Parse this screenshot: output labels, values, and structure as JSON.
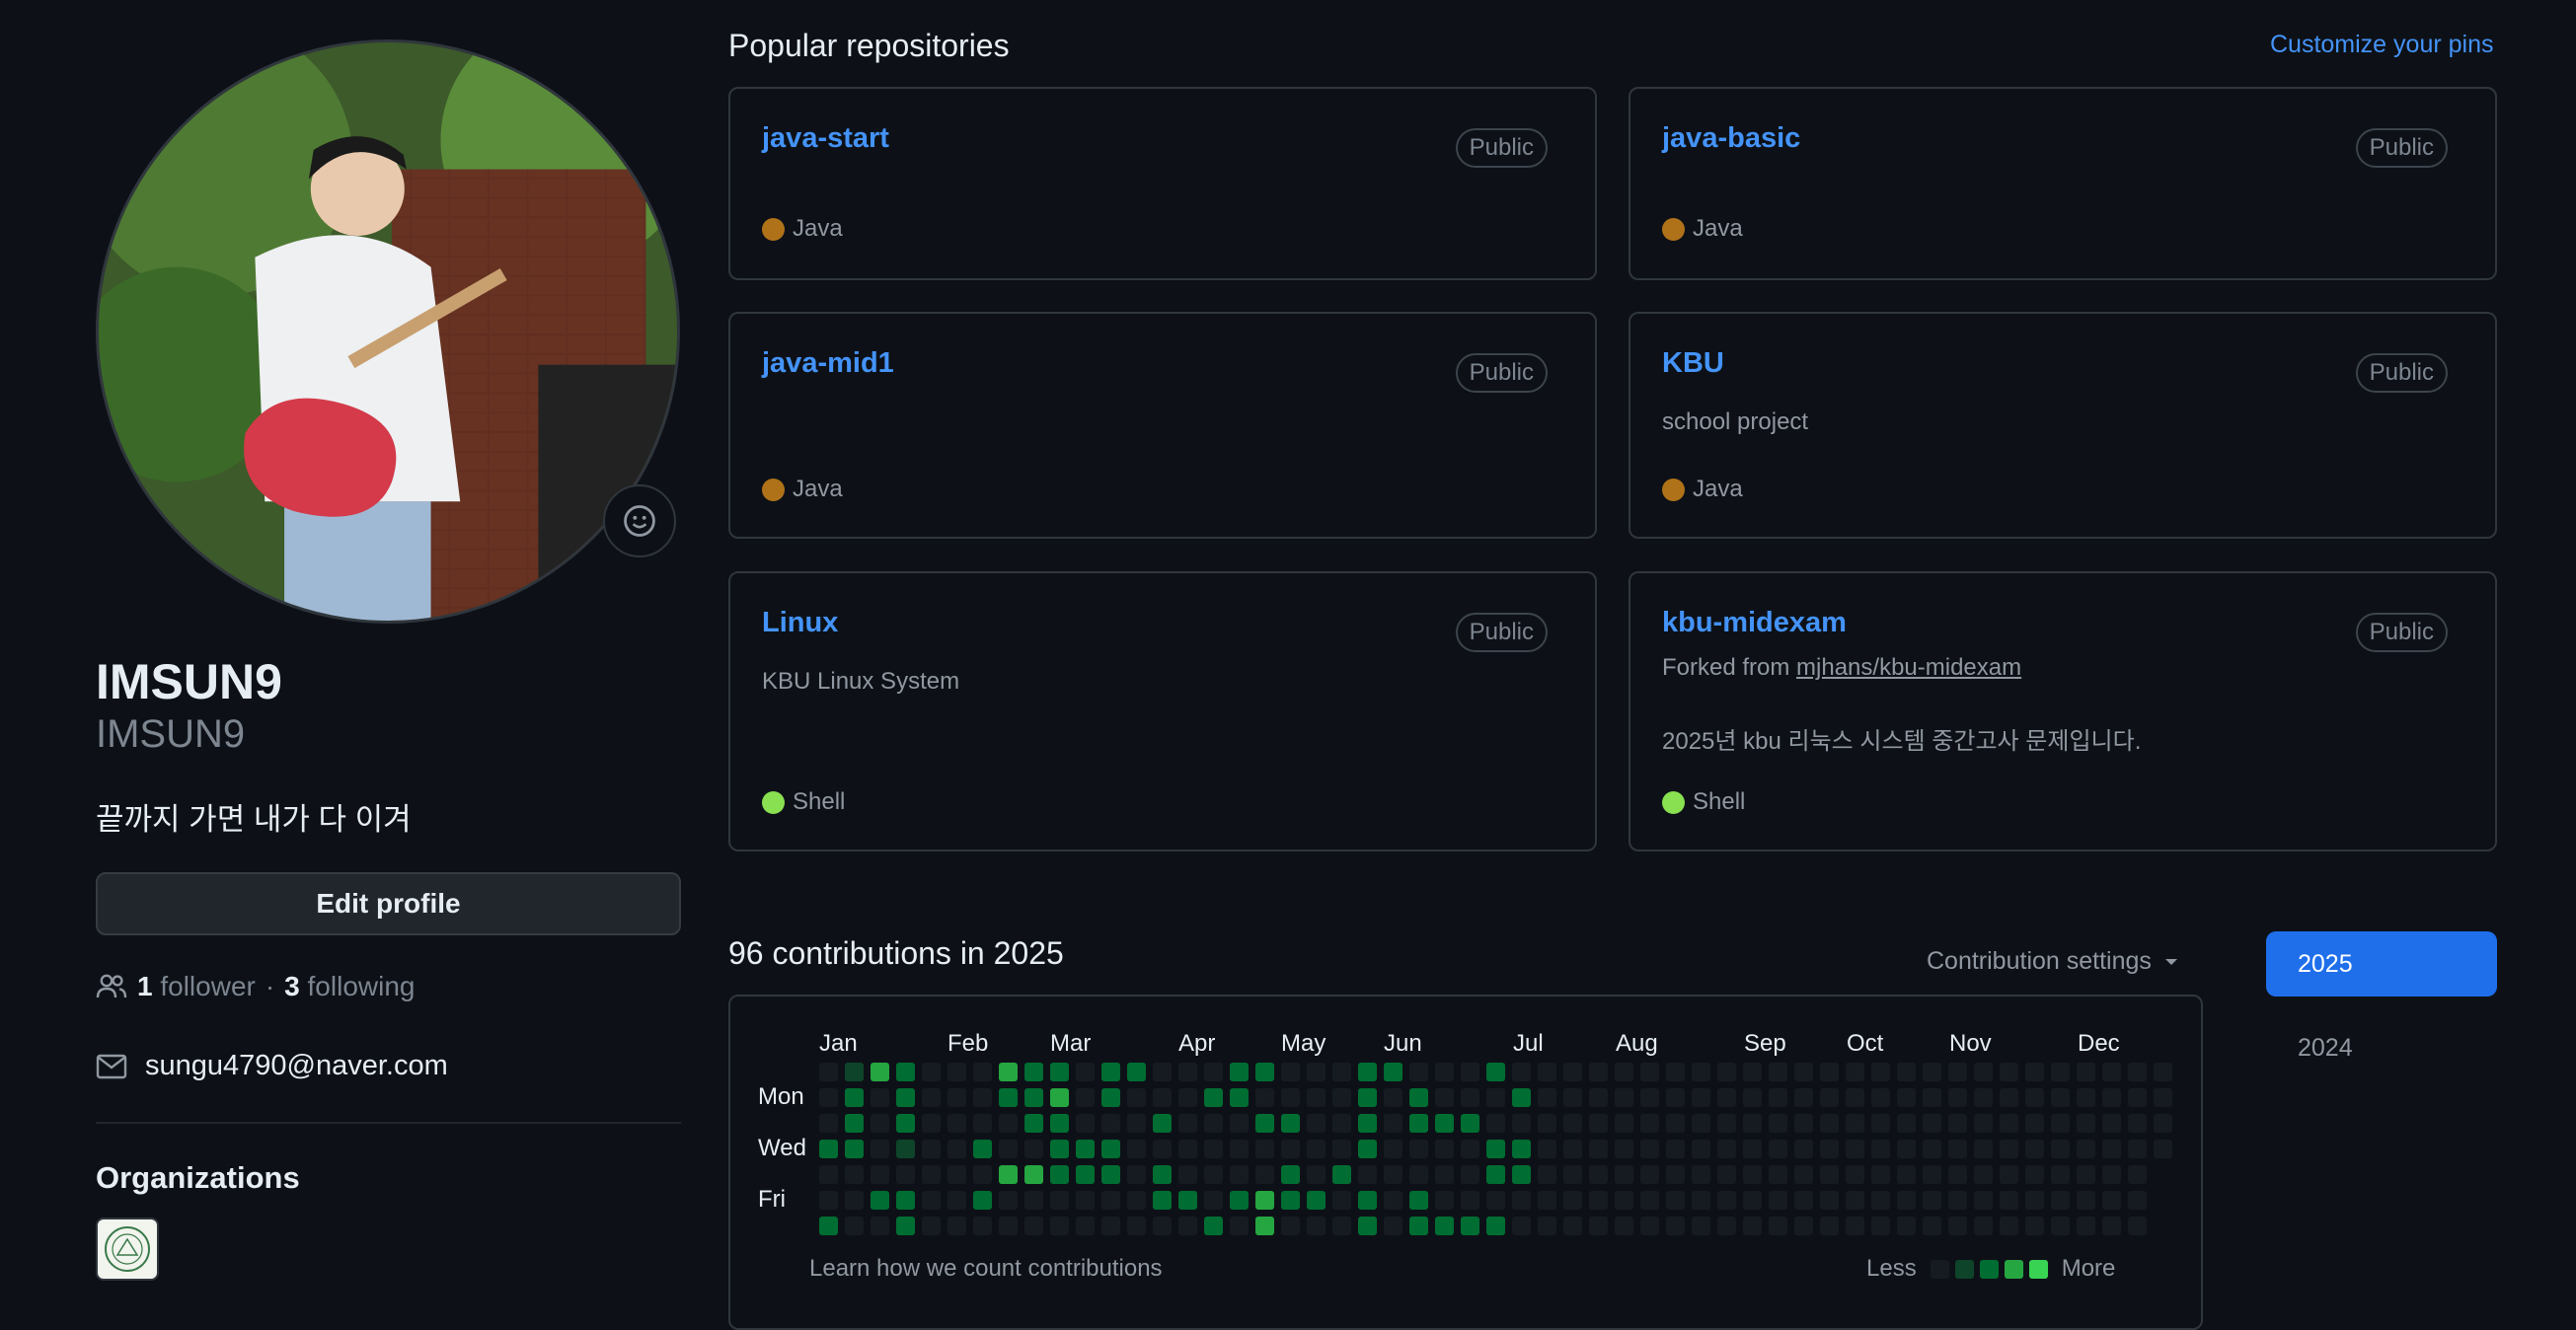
{
  "profile": {
    "name": "IMSUN9",
    "login": "IMSUN9",
    "bio": "끝까지 가면 내가 다 이겨",
    "edit_label": "Edit profile",
    "followers_count": "1",
    "followers_label": "follower",
    "separator": "·",
    "following_count": "3",
    "following_label": "following",
    "email": "sungu4790@naver.com",
    "orgs_heading": "Organizations"
  },
  "pinned": {
    "heading": "Popular repositories",
    "customize": "Customize your pins",
    "repos": [
      {
        "name": "java-start",
        "visibility": "Public",
        "language": "Java",
        "lang_color": "#b07219"
      },
      {
        "name": "java-basic",
        "visibility": "Public",
        "language": "Java",
        "lang_color": "#b07219"
      },
      {
        "name": "java-mid1",
        "visibility": "Public",
        "language": "Java",
        "lang_color": "#b07219"
      },
      {
        "name": "KBU",
        "visibility": "Public",
        "description": "school project",
        "language": "Java",
        "lang_color": "#b07219"
      },
      {
        "name": "Linux",
        "visibility": "Public",
        "description": "KBU Linux System",
        "language": "Shell",
        "lang_color": "#89e051"
      },
      {
        "name": "kbu-midexam",
        "visibility": "Public",
        "fork_prefix": "Forked from ",
        "fork_source": "mjhans/kbu-midexam",
        "description": "2025년 kbu 리눅스 시스템 중간고사 문제입니다.",
        "language": "Shell",
        "lang_color": "#89e051"
      }
    ]
  },
  "contributions": {
    "heading": "96 contributions in 2025",
    "settings_label": "Contribution settings",
    "months": [
      "Jan",
      "Feb",
      "Mar",
      "Apr",
      "May",
      "Jun",
      "Jul",
      "Aug",
      "Sep",
      "Oct",
      "Nov",
      "Dec"
    ],
    "day_labels": [
      "Mon",
      "Wed",
      "Fri"
    ],
    "learn_link": "Learn how we count contributions",
    "legend_less": "Less",
    "legend_more": "More",
    "level_colors": [
      "#161b22",
      "#0e4429",
      "#006d32",
      "#26a641",
      "#39d353"
    ],
    "weeks": [
      [
        0,
        0,
        0,
        2,
        0,
        0,
        2
      ],
      [
        1,
        2,
        2,
        2,
        0,
        0,
        0
      ],
      [
        3,
        0,
        0,
        0,
        0,
        2,
        0
      ],
      [
        2,
        2,
        2,
        1,
        0,
        2,
        2
      ],
      [
        0,
        0,
        0,
        0,
        0,
        0,
        0
      ],
      [
        0,
        0,
        0,
        0,
        0,
        0,
        0
      ],
      [
        0,
        0,
        0,
        2,
        0,
        2,
        0
      ],
      [
        3,
        2,
        0,
        0,
        3,
        0,
        0
      ],
      [
        2,
        2,
        2,
        0,
        3,
        0,
        0
      ],
      [
        2,
        3,
        2,
        2,
        2,
        0,
        0
      ],
      [
        0,
        0,
        0,
        2,
        2,
        0,
        0
      ],
      [
        2,
        2,
        0,
        2,
        2,
        0,
        0
      ],
      [
        2,
        0,
        0,
        0,
        0,
        0,
        0
      ],
      [
        0,
        0,
        2,
        0,
        2,
        2,
        0
      ],
      [
        0,
        0,
        0,
        0,
        0,
        2,
        0
      ],
      [
        0,
        2,
        0,
        0,
        0,
        0,
        2
      ],
      [
        2,
        2,
        0,
        0,
        0,
        2,
        0
      ],
      [
        2,
        0,
        2,
        0,
        0,
        3,
        3
      ],
      [
        0,
        0,
        2,
        0,
        2,
        2,
        0
      ],
      [
        0,
        0,
        0,
        0,
        0,
        2,
        0
      ],
      [
        0,
        0,
        0,
        0,
        2,
        0,
        0
      ],
      [
        2,
        2,
        2,
        2,
        0,
        2,
        2
      ],
      [
        2,
        0,
        0,
        0,
        0,
        0,
        0
      ],
      [
        0,
        2,
        2,
        0,
        0,
        2,
        2
      ],
      [
        0,
        0,
        2,
        0,
        0,
        0,
        2
      ],
      [
        0,
        0,
        2,
        0,
        0,
        0,
        2
      ],
      [
        2,
        0,
        0,
        2,
        2,
        0,
        2
      ],
      [
        0,
        2,
        0,
        2,
        2,
        0,
        0
      ]
    ]
  }
}
